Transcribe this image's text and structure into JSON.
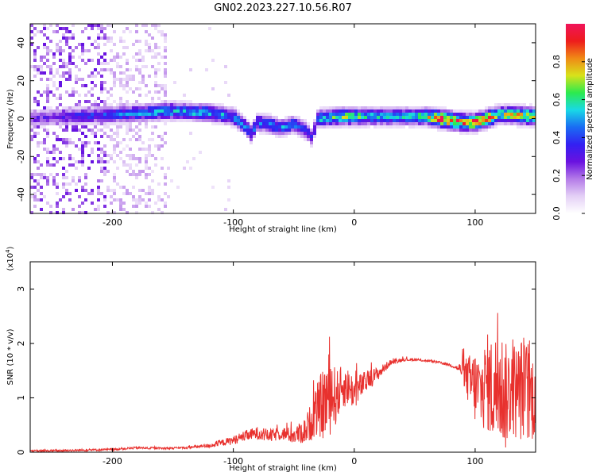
{
  "title": "GN02.2023.227.10.56.R07",
  "colors": {
    "snr_line": "#e8312e",
    "axis": "#000000",
    "background": "#ffffff"
  },
  "colorbar": {
    "label": "Normalized spectral amplitude",
    "ticks": [
      "0.0",
      "0.2",
      "0.4",
      "0.6",
      "0.8"
    ],
    "tick_values": [
      0.0,
      0.2,
      0.4,
      0.6,
      0.8
    ],
    "range": [
      0,
      1
    ],
    "colormap": [
      "#ffffff",
      "#e4d0f6",
      "#b47be8",
      "#6a12e0",
      "#3320f2",
      "#1a6cf3",
      "#19d9e6",
      "#2cea4e",
      "#d8e21a",
      "#f08a16",
      "#ee1c1c",
      "#f0145a"
    ]
  },
  "chart_data": [
    {
      "type": "heatmap",
      "xlabel": "Height of straight line (km)",
      "ylabel": "Frequency (Hz)",
      "xlim": [
        -268,
        150
      ],
      "ylim": [
        -50,
        50
      ],
      "x_ticks": [
        -200,
        -100,
        0,
        100
      ],
      "x_tick_labels": [
        "-200",
        "-100",
        "0",
        "100"
      ],
      "y_ticks": [
        -40,
        -20,
        0,
        20,
        40
      ],
      "y_tick_labels": [
        "-40",
        "-20",
        "0",
        "20",
        "40"
      ],
      "ridge": {
        "description_points_x": [
          -268,
          -240,
          -200,
          -150,
          -120,
          -100,
          -90,
          -85,
          -80,
          -70,
          -60,
          -50,
          -40,
          -35,
          -30,
          -10,
          0,
          20,
          40,
          60,
          70,
          80,
          90,
          100,
          110,
          120,
          130,
          150
        ],
        "center_freq": [
          0,
          1,
          2,
          4,
          3,
          1,
          -4,
          -8,
          -2,
          -3,
          -5,
          -3,
          -6,
          -10,
          0,
          1,
          1,
          1,
          1,
          1,
          0,
          -1,
          -2,
          -2,
          0,
          2,
          2,
          1
        ],
        "peak_amplitude": [
          0.25,
          0.3,
          0.4,
          0.5,
          0.5,
          0.45,
          0.45,
          0.4,
          0.45,
          0.45,
          0.45,
          0.45,
          0.4,
          0.3,
          0.5,
          0.6,
          0.6,
          0.5,
          0.5,
          0.6,
          0.95,
          0.9,
          0.8,
          0.85,
          0.85,
          0.6,
          0.7,
          0.8
        ]
      },
      "noise_region_x": [
        -268,
        -155
      ]
    },
    {
      "type": "line",
      "xlabel": "Height of straight line (km)",
      "ylabel": "SNR (10 * v/v)",
      "y_scale_note": "(x10^4)",
      "y_scale_base": "(x10",
      "y_scale_exp": "4",
      "y_scale_close": ")",
      "xlim": [
        -268,
        150
      ],
      "ylim": [
        0,
        3.5
      ],
      "x_ticks": [
        -200,
        -100,
        0,
        100
      ],
      "x_tick_labels": [
        "-200",
        "-100",
        "0",
        "100"
      ],
      "y_ticks": [
        0,
        1,
        2,
        3
      ],
      "y_tick_labels": [
        "0",
        "1",
        "2",
        "3"
      ],
      "series": [
        {
          "color": "#e8312e",
          "x": [
            -268,
            -240,
            -200,
            -180,
            -160,
            -140,
            -120,
            -100,
            -90,
            -80,
            -70,
            -60,
            -50,
            -40,
            -30,
            -25,
            -20,
            -15,
            -10,
            -5,
            0,
            10,
            20,
            30,
            40,
            50,
            60,
            70,
            80,
            85,
            90,
            95,
            100,
            105,
            110,
            115,
            120,
            125,
            130,
            135,
            140,
            145,
            150
          ],
          "y": [
            0.02,
            0.03,
            0.05,
            0.08,
            0.07,
            0.08,
            0.12,
            0.22,
            0.3,
            0.35,
            0.3,
            0.35,
            0.3,
            0.4,
            0.8,
            0.9,
            1.1,
            1.0,
            1.2,
            1.2,
            1.1,
            1.3,
            1.45,
            1.65,
            1.7,
            1.7,
            1.68,
            1.65,
            1.6,
            1.55,
            1.5,
            1.3,
            1.2,
            1.1,
            1.3,
            1.1,
            1.3,
            1.0,
            1.2,
            1.1,
            1.2,
            1.0,
            1.1
          ]
        }
      ],
      "noise_amplitude": [
        0.02,
        0.02,
        0.02,
        0.02,
        0.02,
        0.02,
        0.04,
        0.08,
        0.1,
        0.12,
        0.12,
        0.12,
        0.15,
        0.25,
        0.5,
        0.7,
        0.8,
        0.5,
        0.4,
        0.35,
        0.3,
        0.2,
        0.12,
        0.05,
        0.03,
        0.02,
        0.02,
        0.02,
        0.03,
        0.05,
        0.2,
        0.5,
        0.7,
        0.7,
        0.9,
        1.0,
        1.1,
        1.0,
        0.9,
        0.9,
        1.0,
        0.9,
        0.8
      ]
    }
  ]
}
